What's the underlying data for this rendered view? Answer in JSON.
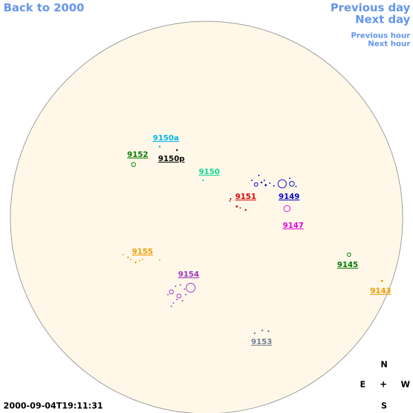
{
  "nav": {
    "back": "Back to 2000",
    "previous_day": "Previous day",
    "next_day": "Next day",
    "previous_hour": "Previous hour",
    "next_hour": "Next hour"
  },
  "regions": [
    {
      "label": "9150a",
      "color": "#00b4ec"
    },
    {
      "label": "9150p",
      "color": "#000000"
    },
    {
      "label": "9152",
      "color": "#007a00"
    },
    {
      "label": "9150",
      "color": "#10d890"
    },
    {
      "label": "9149",
      "color": "#0000d0"
    },
    {
      "label": "9151",
      "color": "#d80000"
    },
    {
      "label": "9147",
      "color": "#e000e0"
    },
    {
      "label": "9155",
      "color": "#f09a00"
    },
    {
      "label": "9145",
      "color": "#007a00"
    },
    {
      "label": "9143",
      "color": "#f09a00"
    },
    {
      "label": "9154",
      "color": "#9a30c8"
    },
    {
      "label": "9153",
      "color": "#708090"
    }
  ],
  "compass": {
    "north": "N",
    "east": "E",
    "center": "+",
    "west": "W",
    "south": "S"
  },
  "timestamp": "2000-09-04T19:11:31"
}
